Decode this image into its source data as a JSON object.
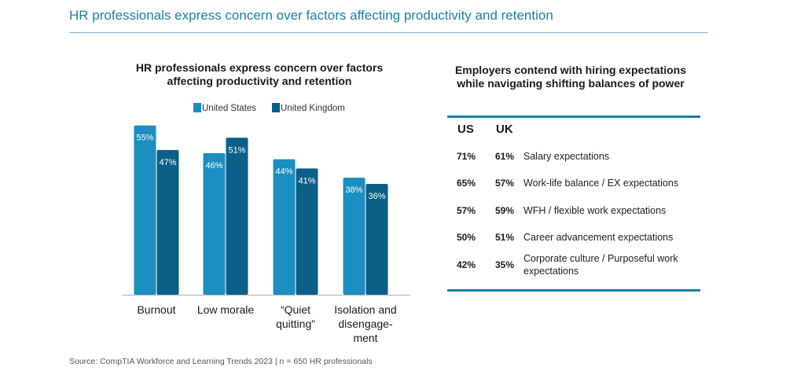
{
  "page": {
    "title": "HR professionals express concern over factors affecting productivity and retention",
    "source": "Source: CompTIA Workforce and Learning Trends 2023 | n = 650 HR professionals"
  },
  "colors": {
    "us": "#1a8fc0",
    "uk": "#0c5f86",
    "accent": "#1b7fa6"
  },
  "chart_data": {
    "type": "bar",
    "title": "HR professionals express concern over factors affecting productivity and retention",
    "categories": [
      [
        "Burnout"
      ],
      [
        "Low morale"
      ],
      [
        "“Quiet",
        "quitting”"
      ],
      [
        "Isolation and",
        "disengage-",
        "ment"
      ]
    ],
    "series": [
      {
        "name": "United States",
        "values": [
          55,
          46,
          44,
          38
        ],
        "labels": [
          "55%",
          "46%",
          "44%",
          "38%"
        ]
      },
      {
        "name": "United Kingdom",
        "values": [
          47,
          51,
          41,
          36
        ],
        "labels": [
          "47%",
          "51%",
          "41%",
          "36%"
        ]
      }
    ],
    "ylim": [
      0,
      60
    ],
    "legend": "top",
    "grid": false
  },
  "table": {
    "title": "Employers contend with hiring expectations while navigating shifting balances of power",
    "col_us": "US",
    "col_uk": "UK",
    "rows": [
      {
        "us": "71%",
        "uk": "61%",
        "label": "Salary expectations"
      },
      {
        "us": "65%",
        "uk": "57%",
        "label": "Work-life balance / EX expectations"
      },
      {
        "us": "57%",
        "uk": "59%",
        "label": "WFH / flexible work expectations"
      },
      {
        "us": "50%",
        "uk": "51%",
        "label": "Career advancement expectations"
      },
      {
        "us": "42%",
        "uk": "35%",
        "label": "Corporate culture / Purposeful work expectations"
      }
    ]
  }
}
